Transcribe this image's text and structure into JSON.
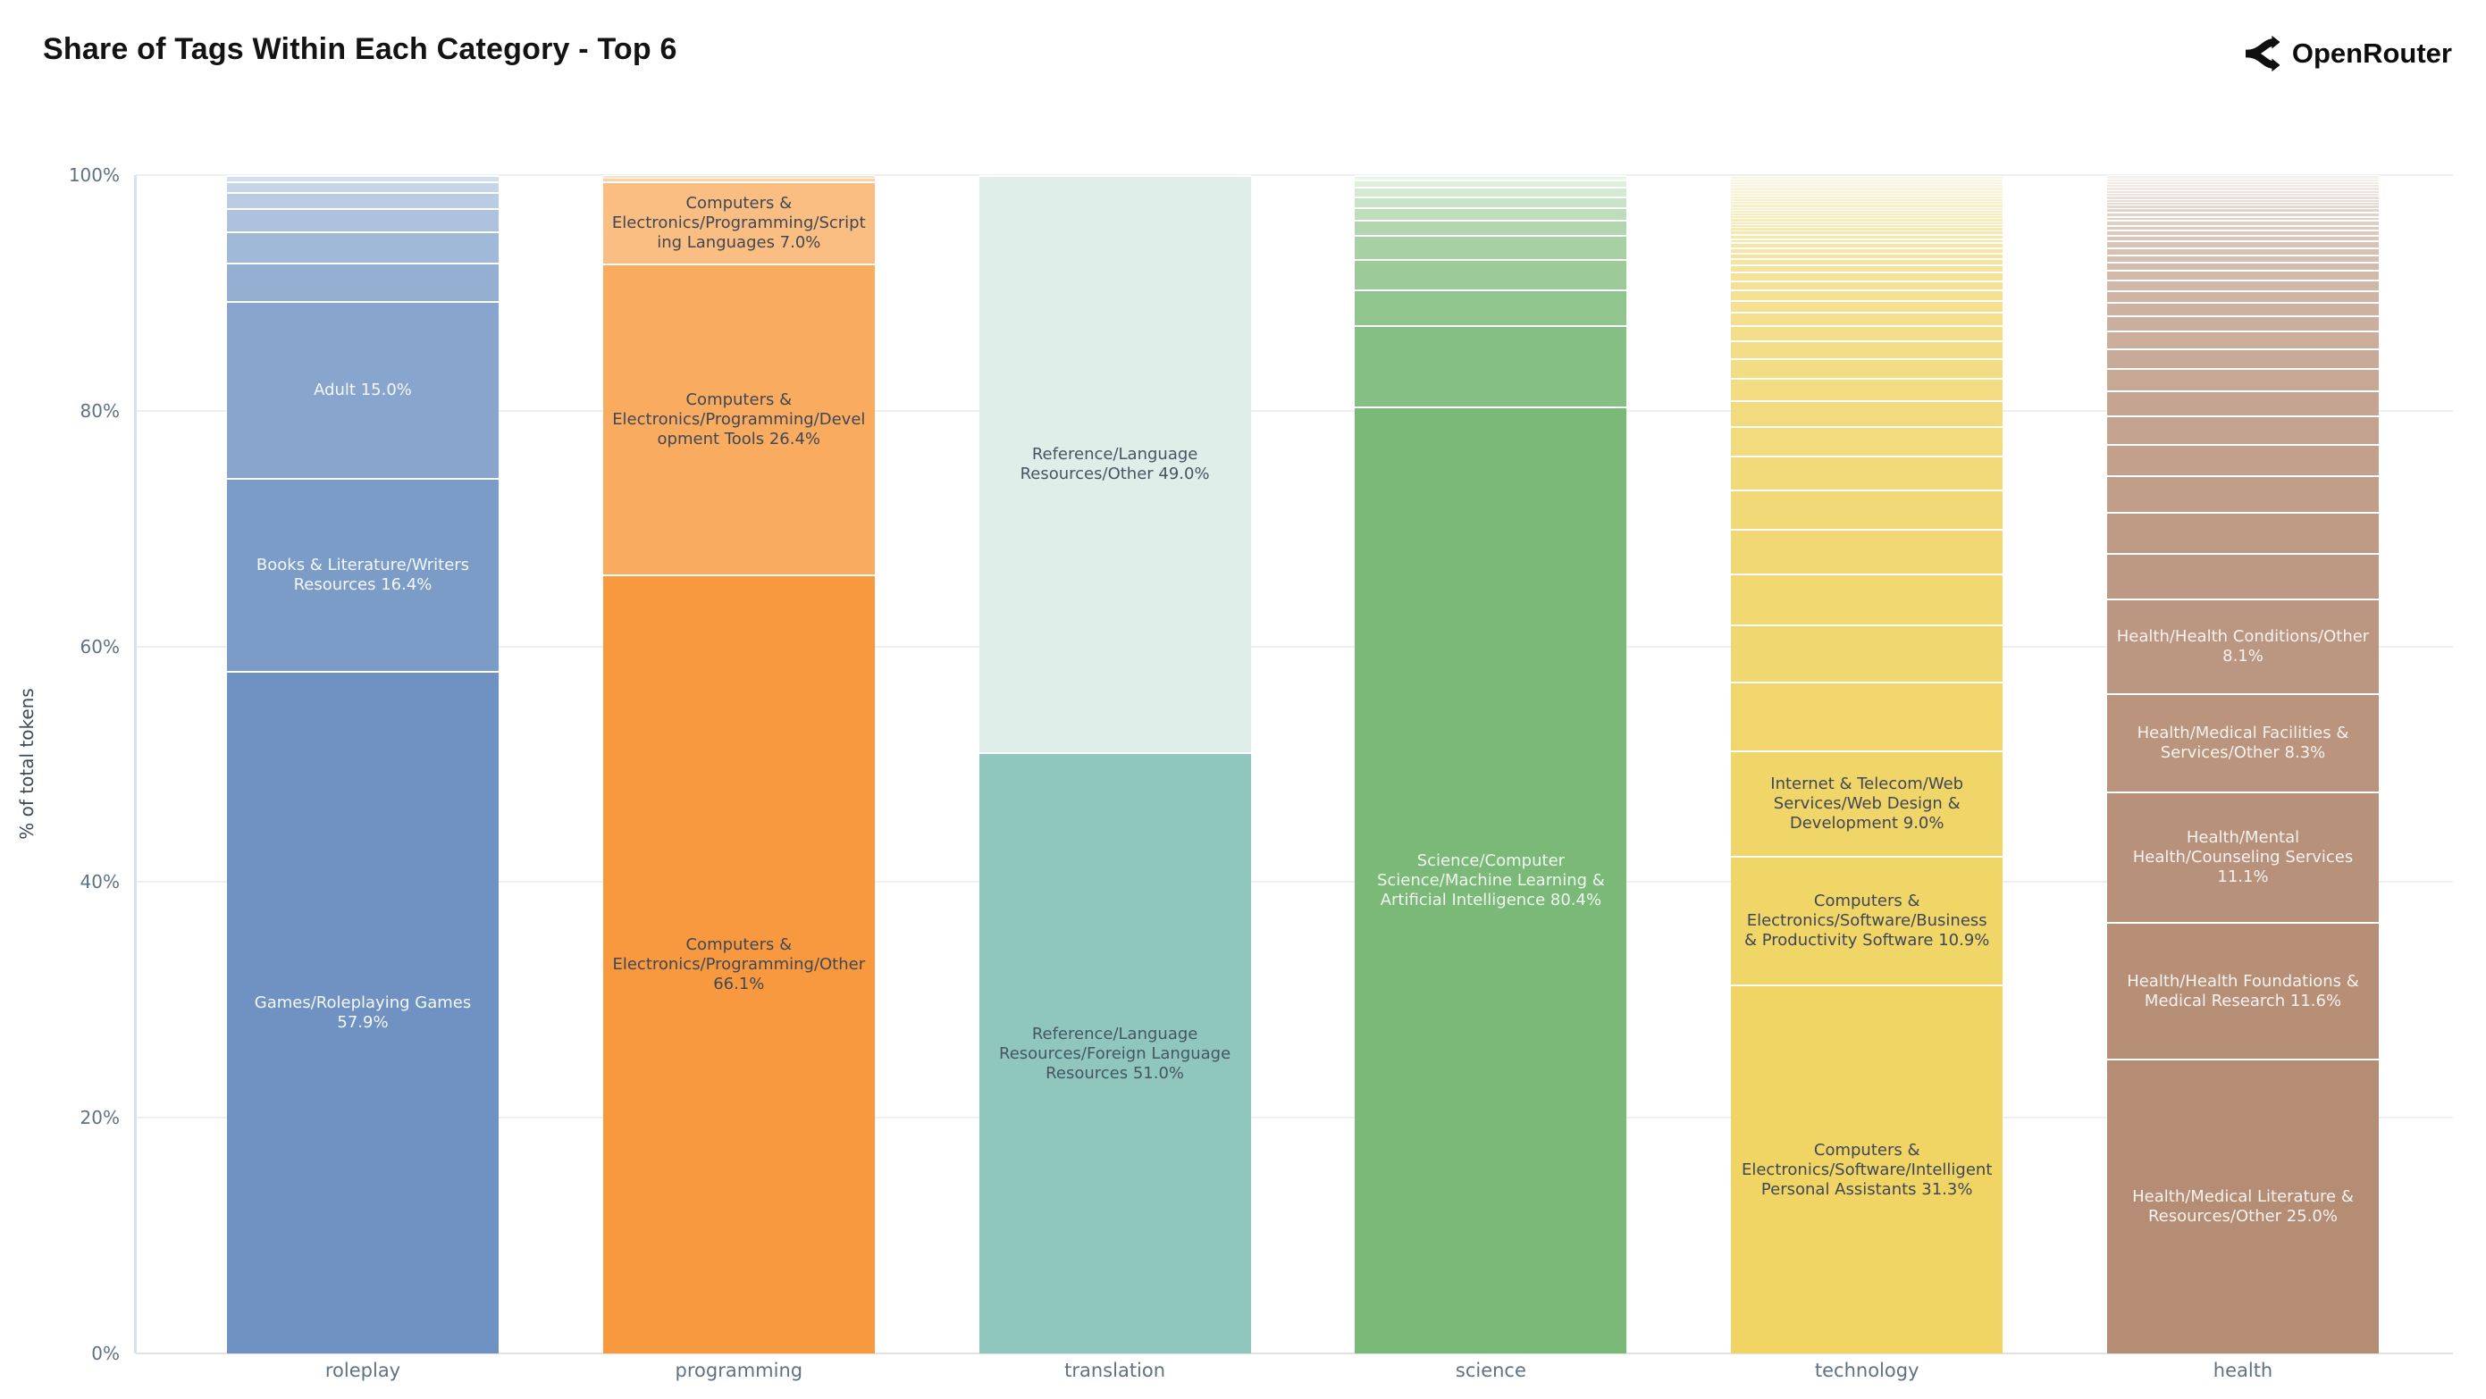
{
  "title": "Share of Tags Within Each Category - Top 6",
  "brand": {
    "name": "OpenRouter"
  },
  "y_axis": {
    "label": "% of total tokens",
    "ticks": [
      {
        "label": "0%",
        "value": 0
      },
      {
        "label": "20%",
        "value": 20
      },
      {
        "label": "40%",
        "value": 40
      },
      {
        "label": "60%",
        "value": 60
      },
      {
        "label": "80%",
        "value": 80
      },
      {
        "label": "100%",
        "value": 100
      }
    ]
  },
  "chart_data": {
    "type": "bar",
    "stacked": true,
    "normalized_to_100": true,
    "grid": true,
    "title": "Share of Tags Within Each Category - Top 6",
    "xlabel": "",
    "ylabel": "% of total tokens",
    "ylim": [
      0,
      100
    ],
    "categories": [
      "roleplay",
      "programming",
      "translation",
      "science",
      "technology",
      "health"
    ],
    "bars": [
      {
        "category": "roleplay",
        "colors": {
          "bottom": "#6f92c2",
          "top": "#d3dfee",
          "label_text": "#f5f8fb"
        },
        "segments": [
          {
            "label": "Games/Roleplaying Games",
            "value": 57.9
          },
          {
            "label": "Books & Literature/Writers Resources",
            "value": 16.4
          },
          {
            "label": "Adult",
            "value": 15.0
          },
          {
            "value": 3.3
          },
          {
            "value": 2.6
          },
          {
            "value": 2.0
          },
          {
            "value": 1.4
          },
          {
            "value": 0.9
          },
          {
            "value": 0.5
          }
        ]
      },
      {
        "category": "programming",
        "colors": {
          "bottom": "#f8993f",
          "top": "#fde3c4",
          "label_text": "#3f4756"
        },
        "segments": [
          {
            "label": "Computers & Electronics/Programming/Other",
            "value": 66.1
          },
          {
            "label": "Computers & Electronics/Programming/Development Tools",
            "value": 26.4
          },
          {
            "label": "Computers & Electronics/Programming/Scripting Languages",
            "value": 7.0
          },
          {
            "value": 0.3
          },
          {
            "value": 0.2
          }
        ]
      },
      {
        "category": "translation",
        "colors": {
          "bottom": "#8fc7bf",
          "top": "#dfeee9",
          "label_text": "#475563"
        },
        "segments": [
          {
            "label": "Reference/Language Resources/Foreign Language Resources",
            "value": 51.0
          },
          {
            "label": "Reference/Language Resources/Other",
            "value": 49.0
          }
        ]
      },
      {
        "category": "science",
        "colors": {
          "bottom": "#7bb978",
          "top": "#e9f5e7",
          "label_text": "#f2f8f1"
        },
        "segments": [
          {
            "label": "Science/Computer Science/Machine Learning & Artificial Intelligence",
            "value": 80.4
          },
          {
            "value": 6.9
          },
          {
            "value": 3.0
          },
          {
            "value": 2.6
          },
          {
            "value": 2.0
          },
          {
            "value": 1.3
          },
          {
            "value": 1.1
          },
          {
            "value": 0.9
          },
          {
            "value": 0.8
          },
          {
            "value": 0.6
          },
          {
            "value": 0.4
          }
        ]
      },
      {
        "category": "technology",
        "colors": {
          "bottom": "#f0d464",
          "top": "#fbf6e0",
          "label_text": "#3f4756"
        },
        "segments": [
          {
            "label": "Computers & Electronics/Software/Intelligent Personal Assistants",
            "value": 31.3
          },
          {
            "label": "Computers & Electronics/Software/Business & Productivity Software",
            "value": 10.9
          },
          {
            "label": "Internet & Telecom/Web Services/Web Design & Development",
            "value": 9.0
          },
          {
            "value": 5.8
          },
          {
            "value": 4.9
          },
          {
            "value": 4.3
          },
          {
            "value": 3.8
          },
          {
            "value": 3.3
          },
          {
            "value": 2.9
          },
          {
            "value": 2.5
          },
          {
            "value": 2.2
          },
          {
            "value": 1.9
          },
          {
            "value": 1.7
          },
          {
            "value": 1.5
          },
          {
            "value": 1.3
          },
          {
            "value": 1.1
          },
          {
            "value": 1.0
          },
          {
            "value": 0.9
          },
          {
            "value": 0.8
          },
          {
            "value": 0.7
          },
          {
            "value": 0.6
          },
          {
            "value": 0.55
          },
          {
            "value": 0.5
          },
          {
            "value": 0.45
          },
          {
            "value": 0.4
          },
          {
            "value": 0.35
          },
          {
            "value": 0.35
          },
          {
            "value": 0.3
          },
          {
            "value": 0.3
          },
          {
            "value": 0.25
          },
          {
            "value": 0.25
          },
          {
            "value": 0.25
          },
          {
            "value": 0.25
          },
          {
            "value": 0.24
          },
          {
            "value": 0.24
          },
          {
            "value": 0.24
          },
          {
            "value": 0.24
          },
          {
            "value": 0.24
          },
          {
            "value": 0.24
          },
          {
            "value": 0.24
          },
          {
            "value": 0.24
          },
          {
            "value": 0.24
          },
          {
            "value": 0.24
          },
          {
            "value": 0.24
          },
          {
            "value": 0.24
          },
          {
            "value": 0.24
          },
          {
            "value": 0.24
          }
        ]
      },
      {
        "category": "health",
        "colors": {
          "bottom": "#b58c74",
          "top": "#f5f1ec",
          "label_text": "#f7f3f0"
        },
        "segments": [
          {
            "label": "Health/Medical Literature & Resources/Other",
            "value": 25.0
          },
          {
            "label": "Health/Health Foundations & Medical Research",
            "value": 11.6
          },
          {
            "label": "Health/Mental Health/Counseling Services",
            "value": 11.1
          },
          {
            "label": "Health/Medical Facilities & Services/Other",
            "value": 8.3
          },
          {
            "label": "Health/Health Conditions/Other",
            "value": 8.1
          },
          {
            "value": 3.8
          },
          {
            "value": 3.5
          },
          {
            "value": 3.1
          },
          {
            "value": 2.7
          },
          {
            "value": 2.4
          },
          {
            "value": 2.1
          },
          {
            "value": 1.9
          },
          {
            "value": 1.7
          },
          {
            "value": 1.5
          },
          {
            "value": 1.3
          },
          {
            "value": 1.15
          },
          {
            "value": 1.0
          },
          {
            "value": 0.9
          },
          {
            "value": 0.8
          },
          {
            "value": 0.7
          },
          {
            "value": 0.65
          },
          {
            "value": 0.6
          },
          {
            "value": 0.55
          },
          {
            "value": 0.5
          },
          {
            "value": 0.45
          },
          {
            "value": 0.4
          },
          {
            "value": 0.4
          },
          {
            "value": 0.35
          },
          {
            "value": 0.35
          },
          {
            "value": 0.3
          },
          {
            "value": 0.3
          },
          {
            "value": 0.25
          },
          {
            "value": 0.25
          },
          {
            "value": 0.25
          },
          {
            "value": 0.25
          },
          {
            "value": 0.25
          },
          {
            "value": 0.25
          },
          {
            "value": 0.25
          },
          {
            "value": 0.25
          },
          {
            "value": 0.25
          },
          {
            "value": 0.25
          }
        ]
      }
    ]
  }
}
